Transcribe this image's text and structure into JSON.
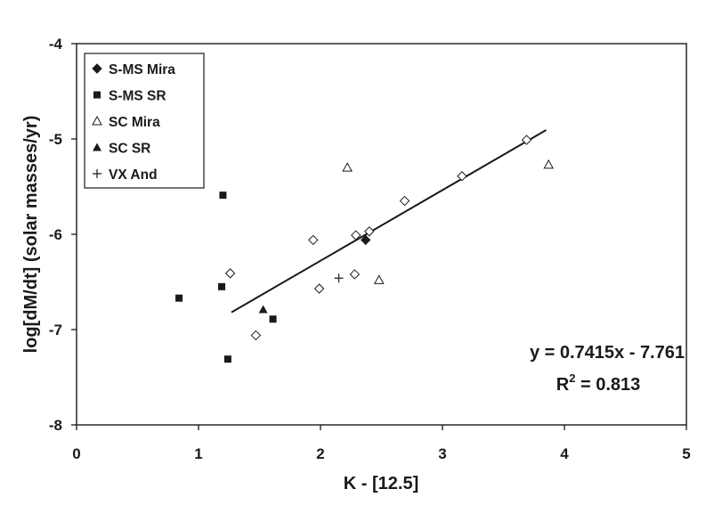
{
  "chart_data": {
    "type": "scatter",
    "xlabel": "K - [12.5]",
    "ylabel": "log[dM/dt]  (solar masses/yr)",
    "xlim": [
      0,
      5
    ],
    "ylim": [
      -8,
      -4
    ],
    "xticks": [
      "0",
      "1",
      "2",
      "3",
      "4",
      "5"
    ],
    "yticks": [
      "-4",
      "-5",
      "-6",
      "-7",
      "-8"
    ],
    "grid": false,
    "legend_position": "top-left",
    "series": [
      {
        "name": "S-MS Mira",
        "marker": "diamond-filled",
        "points": [
          [
            2.37,
            -6.06
          ]
        ]
      },
      {
        "name": "S-MS SR",
        "marker": "square-filled",
        "points": [
          [
            1.2,
            -5.59
          ],
          [
            1.19,
            -6.55
          ],
          [
            0.84,
            -6.67
          ],
          [
            1.61,
            -6.89
          ],
          [
            1.24,
            -7.31
          ]
        ]
      },
      {
        "name": "SC Mira",
        "marker": "triangle-open",
        "points": [
          [
            2.22,
            -5.3
          ],
          [
            3.87,
            -5.27
          ],
          [
            2.48,
            -6.48
          ]
        ]
      },
      {
        "name": "SC SR",
        "marker": "triangle-filled",
        "points": [
          [
            1.53,
            -6.79
          ]
        ]
      },
      {
        "name": "VX And",
        "marker": "plus",
        "points": [
          [
            2.15,
            -6.46
          ]
        ]
      },
      {
        "name": "",
        "marker": "diamond-open",
        "points": [
          [
            3.69,
            -5.01
          ],
          [
            3.16,
            -5.39
          ],
          [
            2.69,
            -5.65
          ],
          [
            1.94,
            -6.06
          ],
          [
            2.29,
            -6.01
          ],
          [
            2.4,
            -5.97
          ],
          [
            1.26,
            -6.41
          ],
          [
            1.99,
            -6.57
          ],
          [
            2.28,
            -6.42
          ],
          [
            1.47,
            -7.06
          ]
        ]
      }
    ],
    "trendline": {
      "slope": 0.7415,
      "intercept": -7.761,
      "x_range": [
        1.27,
        3.85
      ]
    },
    "equation_text": "y = 0.7415x - 7.761",
    "r2_label": "R",
    "r2_sup": "2",
    "r2_value": " = 0.813"
  }
}
